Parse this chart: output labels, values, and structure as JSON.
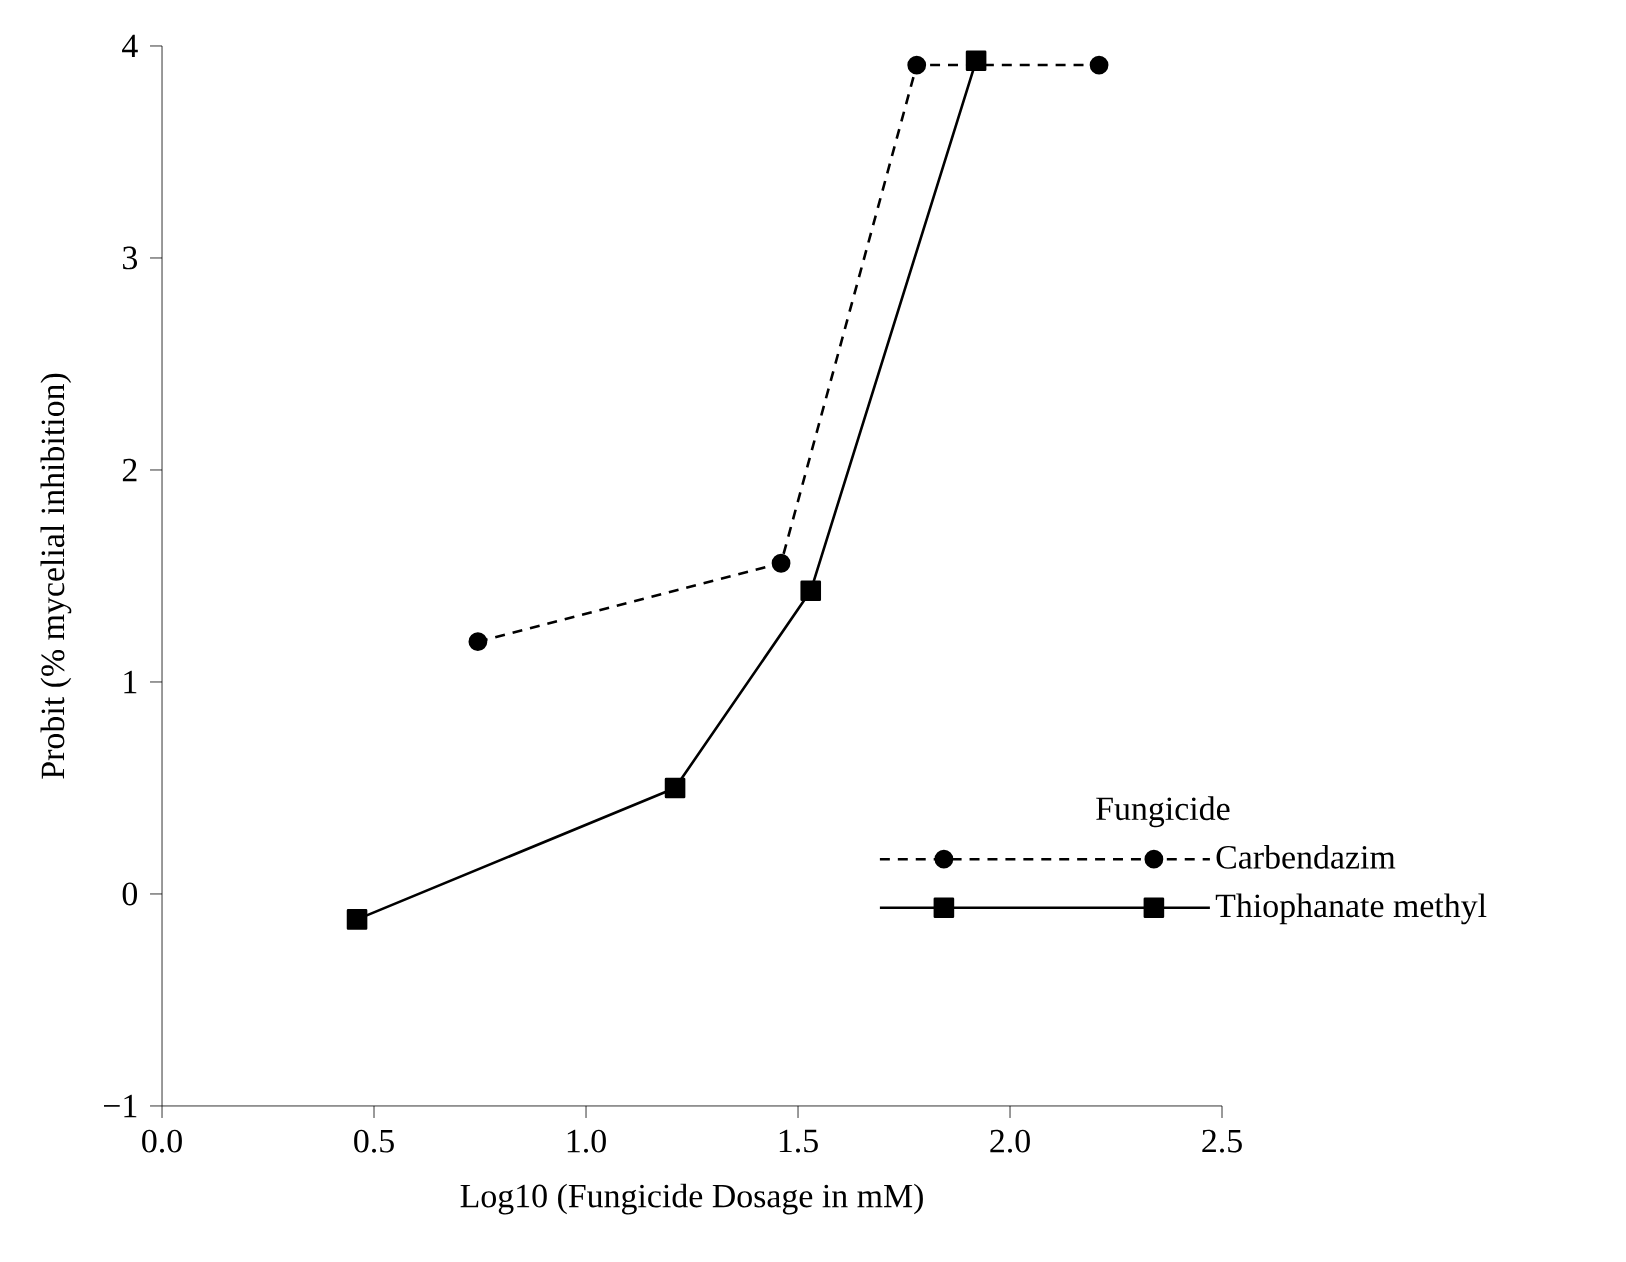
{
  "chart_data": {
    "type": "line",
    "xlabel": "Log10 (Fungicide Dosage in mM)",
    "ylabel": "Probit (% mycelial inhibition)",
    "legend_title": "Fungicide",
    "legend": "bottom right",
    "grid": false,
    "xlim": [
      0,
      2.5
    ],
    "ylim": [
      -1,
      4
    ],
    "xticks": [
      {
        "value": 0,
        "label": "0.0"
      },
      {
        "value": 0.5,
        "label": "0.5"
      },
      {
        "value": 1,
        "label": "1.0"
      },
      {
        "value": 1.5,
        "label": "1.5"
      },
      {
        "value": 2,
        "label": "2.0"
      },
      {
        "value": 2.5,
        "label": "2.5"
      }
    ],
    "yticks": [
      {
        "value": -1,
        "label": "−1"
      },
      0,
      1,
      2,
      3,
      4
    ],
    "series": [
      {
        "name": "Carbendazim",
        "color": "#000000",
        "marker": "circle",
        "line_style": "dashed",
        "x": [
          0.745,
          1.46,
          1.78,
          2.21
        ],
        "values": [
          1.19,
          1.56,
          3.91,
          3.91
        ]
      },
      {
        "name": "Thiophanate methyl",
        "color": "#000000",
        "marker": "square",
        "line_style": "solid",
        "x": [
          0.46,
          1.21,
          1.53,
          1.92
        ],
        "values": [
          -0.12,
          0.5,
          1.43,
          3.93
        ]
      }
    ]
  }
}
